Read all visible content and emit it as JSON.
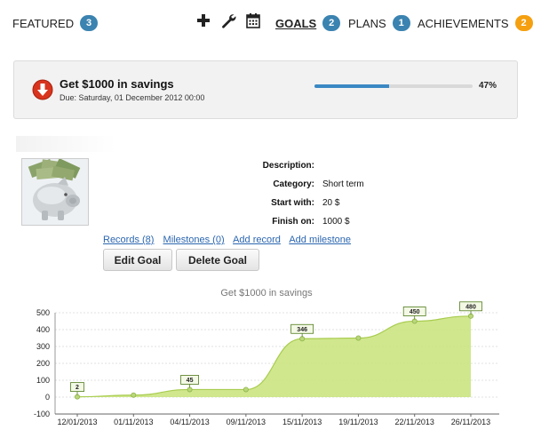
{
  "nav": {
    "featured": {
      "label": "FEATURED",
      "count": "3"
    },
    "goals": {
      "label": "GOALS",
      "count": "2"
    },
    "plans": {
      "label": "PLANS",
      "count": "1"
    },
    "achievements": {
      "label": "ACHIEVEMENTS",
      "count": "2"
    },
    "icons": [
      "plus-icon",
      "wrench-icon",
      "calendar-icon"
    ],
    "badge_colors": {
      "blue": "#3b83b0",
      "orange": "#f5a010"
    }
  },
  "goal": {
    "title": "Get $1000 in savings",
    "due": "Due: Saturday, 01 December 2012 00:00",
    "progress": 0.47,
    "progress_label": "47%",
    "accent": "#3a88c3"
  },
  "details": {
    "description_label": "Description:",
    "description_value": "",
    "category_label": "Category:",
    "category_value": "Short term",
    "start_label": "Start with:",
    "start_value": "20 $",
    "finish_label": "Finish on:",
    "finish_value": "1000 $"
  },
  "links": {
    "records": "Records (8)",
    "milestones": "Milestones (0)",
    "add_record": "Add record",
    "add_milestone": "Add milestone"
  },
  "buttons": {
    "edit": "Edit Goal",
    "delete": "Delete Goal"
  },
  "chart_data": {
    "type": "area",
    "title": "Get $1000 in savings",
    "categories": [
      "12/01/2013",
      "01/11/2013",
      "04/11/2013",
      "09/11/2013",
      "15/11/2013",
      "19/11/2013",
      "22/11/2013",
      "26/11/2013"
    ],
    "series": [
      {
        "values": [
          2,
          12,
          45,
          45,
          346,
          350,
          450,
          480
        ]
      }
    ],
    "data_labels": [
      {
        "index": 0,
        "text": "2"
      },
      {
        "index": 2,
        "text": "45"
      },
      {
        "index": 4,
        "text": "346"
      },
      {
        "index": 6,
        "text": "450"
      },
      {
        "index": 7,
        "text": "480"
      }
    ],
    "ylim": [
      -100,
      500
    ],
    "y_ticks": [
      "500",
      "400",
      "300",
      "200",
      "100",
      "0",
      "-100"
    ],
    "grid": true,
    "fill_color": "#c8e37a",
    "line_color": "#a8cc4e"
  }
}
